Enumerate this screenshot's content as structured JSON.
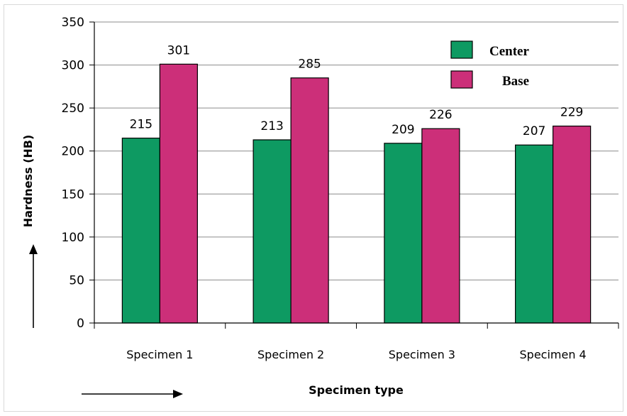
{
  "chart_data": {
    "type": "bar",
    "categories": [
      "Specimen 1",
      "Specimen 2",
      "Specimen 3",
      "Specimen 4"
    ],
    "series": [
      {
        "name": "Center",
        "values": [
          215,
          213,
          209,
          207
        ],
        "color": "#0e9a62"
      },
      {
        "name": "Base",
        "values": [
          301,
          285,
          226,
          229
        ],
        "color": "#cc2f79"
      }
    ],
    "xlabel": "Specimen type",
    "ylabel": "Hardness (HB)",
    "ylim": [
      0,
      350
    ],
    "yticks": [
      "0",
      "50",
      "100",
      "150",
      "200",
      "250",
      "300",
      "350"
    ],
    "grid": true,
    "legend_position": "top-right"
  }
}
